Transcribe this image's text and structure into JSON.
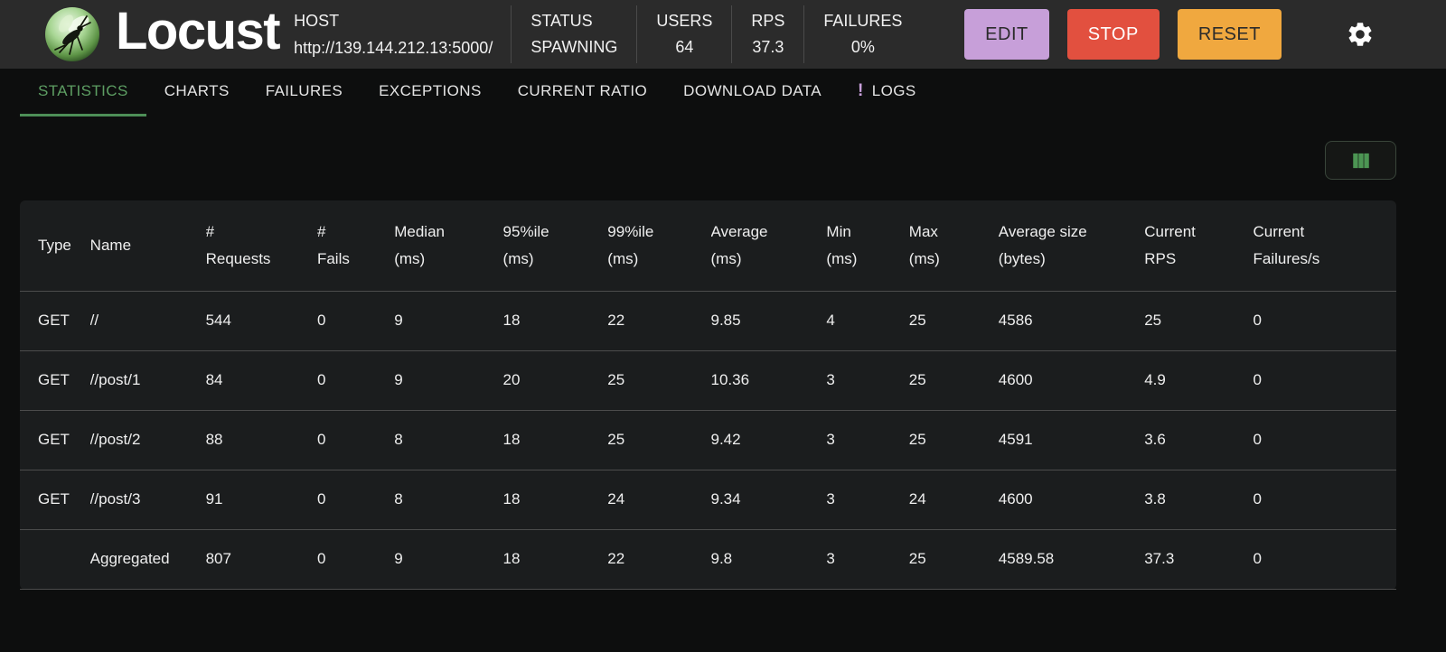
{
  "header": {
    "app_name": "Locust",
    "host": {
      "label": "HOST",
      "url": "http://139.144.212.13:5000/"
    },
    "stats": [
      {
        "label": "STATUS",
        "value": "SPAWNING"
      },
      {
        "label": "USERS",
        "value": "64"
      },
      {
        "label": "RPS",
        "value": "37.3"
      },
      {
        "label": "FAILURES",
        "value": "0%"
      }
    ],
    "buttons": {
      "edit": "EDIT",
      "stop": "STOP",
      "reset": "RESET"
    },
    "icons": {
      "settings": "settings-gear",
      "logo": "locust-logo"
    }
  },
  "tabs": {
    "active": "STATISTICS",
    "items": [
      {
        "label": "STATISTICS"
      },
      {
        "label": "CHARTS"
      },
      {
        "label": "FAILURES"
      },
      {
        "label": "EXCEPTIONS"
      },
      {
        "label": "CURRENT RATIO"
      },
      {
        "label": "DOWNLOAD DATA"
      },
      {
        "label": "LOGS",
        "badge": "!"
      }
    ]
  },
  "toolbar": {
    "column_selector_icon": "view-columns"
  },
  "table": {
    "columns": [
      {
        "lines": [
          "Type"
        ]
      },
      {
        "lines": [
          "Name"
        ]
      },
      {
        "lines": [
          "#",
          "Requests"
        ]
      },
      {
        "lines": [
          "#",
          "Fails"
        ]
      },
      {
        "lines": [
          "Median",
          "(ms)"
        ]
      },
      {
        "lines": [
          "95%ile",
          "(ms)"
        ]
      },
      {
        "lines": [
          "99%ile",
          "(ms)"
        ]
      },
      {
        "lines": [
          "Average",
          "(ms)"
        ]
      },
      {
        "lines": [
          "Min",
          "(ms)"
        ]
      },
      {
        "lines": [
          "Max",
          "(ms)"
        ]
      },
      {
        "lines": [
          "Average size",
          "(bytes)"
        ]
      },
      {
        "lines": [
          "Current",
          "RPS"
        ]
      },
      {
        "lines": [
          "Current",
          "Failures/s"
        ]
      }
    ],
    "rows": [
      [
        "GET",
        "//",
        "544",
        "0",
        "9",
        "18",
        "22",
        "9.85",
        "4",
        "25",
        "4586",
        "25",
        "0"
      ],
      [
        "GET",
        "//post/1",
        "84",
        "0",
        "9",
        "20",
        "25",
        "10.36",
        "3",
        "25",
        "4600",
        "4.9",
        "0"
      ],
      [
        "GET",
        "//post/2",
        "88",
        "0",
        "8",
        "18",
        "25",
        "9.42",
        "3",
        "25",
        "4591",
        "3.6",
        "0"
      ],
      [
        "GET",
        "//post/3",
        "91",
        "0",
        "8",
        "18",
        "24",
        "9.34",
        "3",
        "24",
        "4600",
        "3.8",
        "0"
      ],
      [
        "",
        "Aggregated",
        "807",
        "0",
        "9",
        "18",
        "22",
        "9.8",
        "3",
        "25",
        "4589.58",
        "37.3",
        "0"
      ]
    ]
  },
  "colors": {
    "accent_green": "#5d9e63",
    "table_icon_green": "#4c9553",
    "edit_button": "#c79fd9",
    "stop_button": "#e2503f",
    "reset_button": "#f0a83f",
    "logs_badge": "#c9a0dc",
    "header_bg": "#2b2b2b",
    "page_bg": "#0d0e0e",
    "card_bg": "#1b1d1e"
  }
}
